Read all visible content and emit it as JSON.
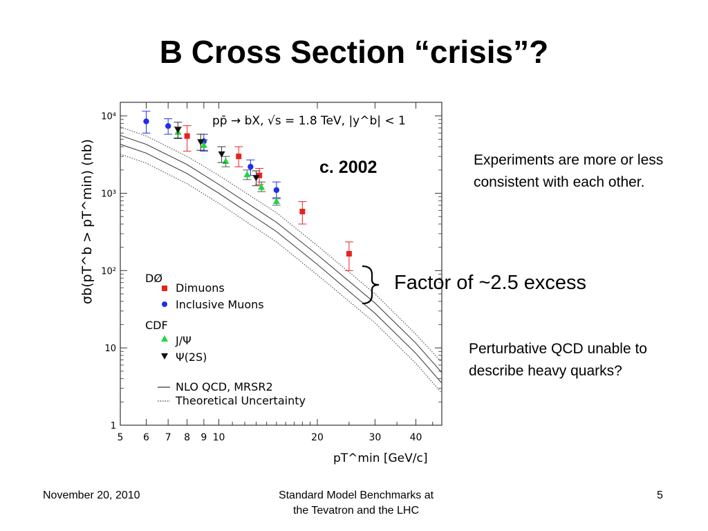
{
  "slide": {
    "title": "B Cross Section “crisis”?",
    "era_label": "c. 2002",
    "note_consistent": "Experiments are more or less consistent with each other.",
    "factor_label": "Factor of ~2.5 excess",
    "note_qcd": "Perturbative QCD unable to describe heavy quarks?",
    "footer": {
      "date": "November 20, 2010",
      "center_line1": "Standard Model Benchmarks at",
      "center_line2": "the Tevatron and the LHC",
      "page": "5"
    }
  },
  "chart_data": {
    "type": "scatter",
    "title": "pp̄ → bX, √s = 1.8 TeV, |y^b| < 1",
    "xlabel": "pT^min [GeV/c]",
    "ylabel": "σb(pT^b > pT^min) (nb)",
    "x_scale": "log",
    "y_scale": "log",
    "xlim": [
      5,
      48
    ],
    "ylim": [
      1,
      15000
    ],
    "x_ticks": [
      5,
      6,
      7,
      8,
      9,
      10,
      20,
      30,
      40
    ],
    "y_ticks": [
      {
        "value": 1,
        "label": "1"
      },
      {
        "value": 10,
        "label": "10"
      },
      {
        "value": 100,
        "label": "10²"
      },
      {
        "value": 1000,
        "label": "10³"
      },
      {
        "value": 10000,
        "label": "10⁴"
      }
    ],
    "legend": {
      "placement": "bottom-left",
      "d0_header": "DØ",
      "cdf_header": "CDF",
      "dimuons": "Dimuons",
      "inclusive": "Inclusive Muons",
      "jpsi": "J/Ψ",
      "psi2s": "Ψ(2S)",
      "nlo": "NLO QCD, MRSR2",
      "unc": "Theoretical Uncertainty"
    },
    "colors": {
      "dimuons": "#e8231f",
      "inclusive": "#1f2ee8",
      "jpsi": "#1fd63a",
      "psi2s": "#111111",
      "error_red": "#e8231f",
      "error_blue": "#1f2ee8"
    },
    "series": [
      {
        "name": "Dimuons",
        "marker": "square",
        "points": [
          {
            "x": 8.0,
            "y": 5500,
            "lo": 3500,
            "hi": 7500
          },
          {
            "x": 11.5,
            "y": 3000,
            "lo": 2200,
            "hi": 4000
          },
          {
            "x": 13.3,
            "y": 1700,
            "lo": 1300,
            "hi": 2100
          },
          {
            "x": 18.0,
            "y": 580,
            "lo": 400,
            "hi": 780
          },
          {
            "x": 25.0,
            "y": 165,
            "lo": 100,
            "hi": 235
          }
        ]
      },
      {
        "name": "Inclusive Muons",
        "marker": "circle",
        "points": [
          {
            "x": 6.0,
            "y": 8500,
            "lo": 6000,
            "hi": 11500
          },
          {
            "x": 7.0,
            "y": 7400,
            "lo": 5800,
            "hi": 9200
          },
          {
            "x": 9.0,
            "y": 4700,
            "lo": 3500,
            "hi": 5800
          },
          {
            "x": 12.5,
            "y": 2200,
            "lo": 1700,
            "hi": 2700
          },
          {
            "x": 15.0,
            "y": 1100,
            "lo": 850,
            "hi": 1400
          }
        ]
      },
      {
        "name": "J/Ψ",
        "marker": "triangle-up",
        "points": [
          {
            "x": 7.5,
            "y": 6200,
            "lo": 5200,
            "hi": 7200
          },
          {
            "x": 9.0,
            "y": 4200,
            "lo": 3600,
            "hi": 4900
          },
          {
            "x": 10.5,
            "y": 2600,
            "lo": 2200,
            "hi": 3000
          },
          {
            "x": 12.2,
            "y": 1750,
            "lo": 1500,
            "hi": 2000
          },
          {
            "x": 13.5,
            "y": 1200,
            "lo": 1050,
            "hi": 1400
          },
          {
            "x": 15.0,
            "y": 790,
            "lo": 700,
            "hi": 880
          }
        ]
      },
      {
        "name": "Ψ(2S)",
        "marker": "triangle-down",
        "points": [
          {
            "x": 7.5,
            "y": 6600,
            "lo": 5100,
            "hi": 8300
          },
          {
            "x": 8.8,
            "y": 4600,
            "lo": 3600,
            "hi": 5800
          },
          {
            "x": 10.2,
            "y": 3200,
            "lo": 2500,
            "hi": 4000
          },
          {
            "x": 13.0,
            "y": 1580,
            "lo": 1250,
            "hi": 1950
          }
        ]
      }
    ],
    "curves": [
      {
        "name": "NLO QCD, MRSR2",
        "style": "solid",
        "x": [
          5,
          6,
          8,
          10,
          15,
          20,
          30,
          40,
          48
        ],
        "y": [
          4300,
          3300,
          1800,
          1000,
          320,
          120,
          28,
          8.5,
          3.5
        ]
      },
      {
        "name": "NLO QCD upper",
        "style": "solid",
        "x": [
          5,
          6,
          8,
          10,
          15,
          20,
          30,
          40,
          48
        ],
        "y": [
          5600,
          4300,
          2350,
          1300,
          420,
          160,
          38,
          11.5,
          4.8
        ]
      },
      {
        "name": "Theoretical Uncertainty upper",
        "style": "dotted",
        "x": [
          5,
          6,
          8,
          10,
          15,
          20,
          30,
          40,
          48
        ],
        "y": [
          7200,
          5500,
          3000,
          1700,
          560,
          210,
          50,
          15,
          6.5
        ]
      },
      {
        "name": "Theoretical Uncertainty lower",
        "style": "dotted",
        "x": [
          5,
          6,
          8,
          10,
          15,
          20,
          30,
          40,
          48
        ],
        "y": [
          3200,
          2450,
          1330,
          740,
          235,
          88,
          21,
          6.3,
          2.6
        ]
      }
    ]
  }
}
